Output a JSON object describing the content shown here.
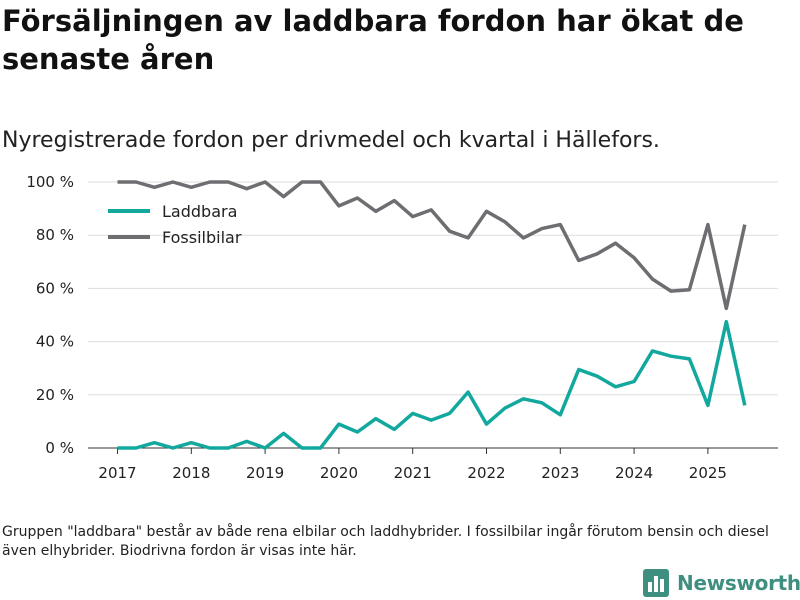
{
  "header": {
    "title": "Försäljningen av laddbara fordon har ökat de senaste åren",
    "subtitle": "Nyregistrerade fordon per drivmedel och kvartal i Hällefors."
  },
  "footer": {
    "note": "Gruppen \"laddbara\" består av både rena elbilar och laddhybrider. I fossilbilar ingår förutom bensin och diesel även elhybrider. Biodrivna fordon är visas inte här.",
    "brand": "Newsworthy",
    "logo_icon": "bar-chart-logo-icon"
  },
  "chart_data": {
    "type": "line",
    "title": "Försäljningen av laddbara fordon har ökat de senaste åren",
    "subtitle": "Nyregistrerade fordon per drivmedel och kvartal i Hällefors.",
    "xlabel": "",
    "ylabel": "",
    "x_start": 2017,
    "x_step": 0.25,
    "xlim": [
      2016.6,
      2025.95
    ],
    "ylim": [
      0,
      100
    ],
    "y_ticks": [
      0,
      20,
      40,
      60,
      80,
      100
    ],
    "y_tick_labels": [
      "0 %",
      "20 %",
      "40 %",
      "60 %",
      "80 %",
      "100 %"
    ],
    "x_ticks": [
      2017,
      2018,
      2019,
      2020,
      2021,
      2022,
      2023,
      2024,
      2025
    ],
    "x_tick_labels": [
      "2017",
      "2018",
      "2019",
      "2020",
      "2021",
      "2022",
      "2023",
      "2024",
      "2025"
    ],
    "grid": true,
    "legend_position": "top-left",
    "series": [
      {
        "name": "Laddbara",
        "color": "#13a89e",
        "values": [
          0,
          0,
          2,
          0,
          2,
          0,
          0,
          2.5,
          0,
          5.5,
          0,
          0,
          9,
          6,
          11,
          7,
          13,
          10.5,
          13,
          21,
          9,
          15,
          18.5,
          17,
          12.5,
          29.5,
          27,
          23,
          25,
          36.5,
          34.5,
          33.5,
          16,
          47.5,
          16
        ]
      },
      {
        "name": "Fossilbilar",
        "color": "#6d6e71",
        "values": [
          100,
          100,
          98,
          100,
          98,
          100,
          100,
          97.5,
          100,
          94.5,
          100,
          100,
          91,
          94,
          89,
          93,
          87,
          89.5,
          81.5,
          79,
          89,
          85,
          79,
          82.5,
          84,
          70.5,
          73,
          77,
          71.5,
          63.5,
          59,
          59.5,
          84,
          52.5,
          84
        ]
      }
    ]
  }
}
